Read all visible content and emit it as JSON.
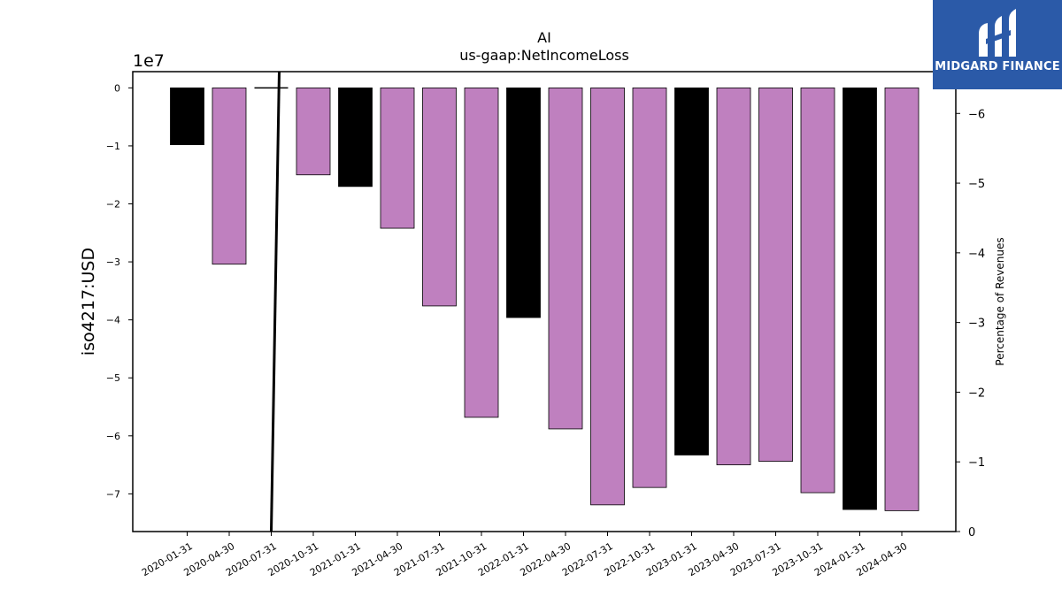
{
  "chart_data": {
    "type": "bar",
    "title": "AI",
    "subtitle": "us-gaap:NetIncomeLoss",
    "ylabel": "iso4217:USD",
    "y2label": "Percentage of Revenues",
    "offset_label": "1e7",
    "ylim": [
      -76500000,
      2800000
    ],
    "y2lim": [
      0,
      -6.6
    ],
    "yticks": [
      0,
      -1,
      -2,
      -3,
      -4,
      -5,
      -6,
      -7
    ],
    "y2ticks": [
      0,
      -1,
      -2,
      -3,
      -4,
      -5,
      -6
    ],
    "categories": [
      "2020-01-31",
      "2020-04-30",
      "2020-07-31",
      "2020-10-31",
      "2021-01-31",
      "2021-04-30",
      "2021-07-31",
      "2021-10-31",
      "2022-01-31",
      "2022-04-30",
      "2022-07-31",
      "2022-10-31",
      "2023-01-31",
      "2023-04-30",
      "2023-07-31",
      "2023-10-31",
      "2024-01-31",
      "2024-04-30"
    ],
    "values": [
      -9800000,
      -30400000,
      null,
      -15000000,
      -17000000,
      -24200000,
      -37600000,
      -56800000,
      -39600000,
      -58800000,
      -71900000,
      -68900000,
      -63300000,
      -65000000,
      -64400000,
      -69800000,
      -72700000,
      -72900000
    ],
    "bar_colors": [
      "#000000",
      "#bf80bf",
      "#bf80bf",
      "#bf80bf",
      "#000000",
      "#bf80bf",
      "#bf80bf",
      "#bf80bf",
      "#000000",
      "#bf80bf",
      "#bf80bf",
      "#bf80bf",
      "#000000",
      "#bf80bf",
      "#bf80bf",
      "#bf80bf",
      "#000000",
      "#bf80bf"
    ],
    "percentage_line": {
      "color": "#000000",
      "points": [
        {
          "category": "2020-07-31",
          "value": -6.6
        },
        {
          "category": "2020-07-31",
          "value": 0
        }
      ]
    },
    "grid": false,
    "legend": "none"
  },
  "logo": {
    "text": "MIDGARD FINANCE",
    "color": "#2b5aa8"
  }
}
